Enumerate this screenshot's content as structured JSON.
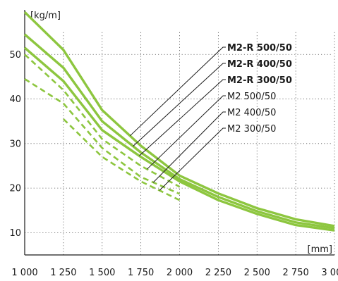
{
  "chart_data": {
    "type": "line",
    "title": "",
    "xlabel": "[mm]",
    "ylabel": "[kg/m]",
    "xlim": [
      1000,
      3000
    ],
    "ylim": [
      5,
      60
    ],
    "x_ticks": [
      1000,
      1250,
      1500,
      1750,
      2000,
      2250,
      2500,
      2750,
      3000
    ],
    "x_tick_labels": [
      "1 000",
      "1 250",
      "1 500",
      "1 750",
      "2 000",
      "2 250",
      "2 500",
      "2 750",
      "3 000"
    ],
    "y_ticks": [
      10,
      20,
      30,
      40,
      50
    ],
    "y_tick_labels": [
      "10",
      "20",
      "30",
      "40",
      "50"
    ],
    "grid": "dotted",
    "line_color": "#8dc63f",
    "series": [
      {
        "name": "M2-R 500/50",
        "bold": true,
        "style": "solid",
        "x": [
          1000,
          1250,
          1500,
          1750,
          2000,
          2250,
          2500,
          2750,
          3000
        ],
        "values": [
          59.5,
          51,
          37.5,
          29.5,
          22.8,
          18.8,
          15.5,
          13,
          11.5
        ]
      },
      {
        "name": "M2-R 400/50",
        "bold": true,
        "style": "solid",
        "x": [
          1000,
          1250,
          1500,
          1750,
          2000,
          2250,
          2500,
          2750,
          3000
        ],
        "values": [
          54.5,
          47,
          35,
          28,
          22,
          18,
          14.8,
          12.3,
          11
        ]
      },
      {
        "name": "M2-R 300/50",
        "bold": true,
        "style": "solid",
        "x": [
          1000,
          1250,
          1500,
          1750,
          2000,
          2250,
          2500,
          2750,
          3000
        ],
        "values": [
          51.5,
          44,
          33,
          27,
          21.5,
          17.3,
          14.2,
          11.7,
          10.5
        ]
      },
      {
        "name": "M2 500/50",
        "bold": false,
        "style": "dashed",
        "x": [
          1000,
          1250,
          1500,
          1750,
          2000
        ],
        "values": [
          50,
          42,
          31,
          25,
          20.3
        ]
      },
      {
        "name": "M2 400/50",
        "bold": false,
        "style": "dashed",
        "x": [
          1000,
          1250,
          1500,
          1750,
          2000
        ],
        "values": [
          44.5,
          39,
          29,
          22.5,
          18.7
        ]
      },
      {
        "name": "M2 300/50",
        "bold": false,
        "style": "dashed",
        "x": [
          1250,
          1500,
          1750,
          2000
        ],
        "values": [
          35.5,
          27,
          21.5,
          17.3
        ]
      }
    ]
  }
}
